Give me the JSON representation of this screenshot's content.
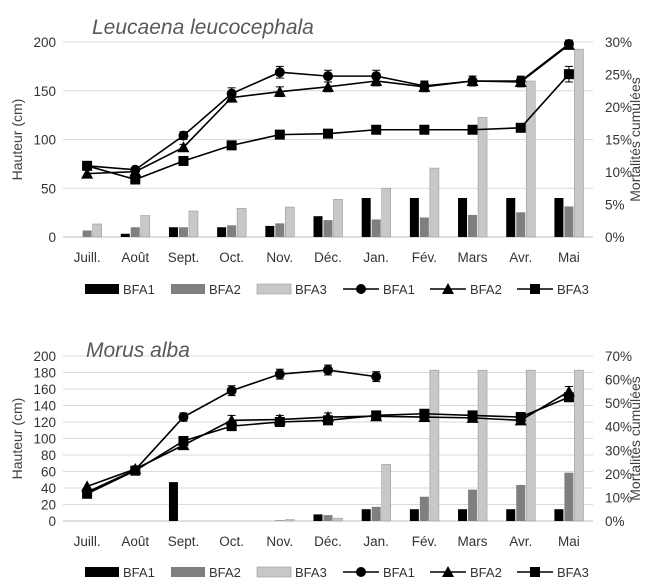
{
  "chart_data": [
    {
      "type": "bar+line",
      "title": "Leucaena leucocephala",
      "ylabel": "Hauteur (cm)",
      "y2label": "Mortalités cumulées",
      "ylim": [
        0,
        200
      ],
      "yticks": [
        "0",
        "50",
        "100",
        "150",
        "200"
      ],
      "y2lim": [
        0,
        30
      ],
      "y2ticks": [
        "0%",
        "5%",
        "10%",
        "15%",
        "20%",
        "25%",
        "30%"
      ],
      "categories": [
        "Juill.",
        "Août",
        "Sept.",
        "Oct.",
        "Nov.",
        "Déc.",
        "Jan.",
        "Fév.",
        "Mars",
        "Avr.",
        "Mai"
      ],
      "bar_series": [
        {
          "name": "BFA1",
          "color": "#000000",
          "values": [
            0,
            0.5,
            1.5,
            1.5,
            1.7,
            3.2,
            6.0,
            6.0,
            6.0,
            6.0,
            6.0
          ]
        },
        {
          "name": "BFA2",
          "color": "#7f7f7f",
          "values": [
            1.0,
            1.5,
            1.5,
            1.8,
            2.1,
            2.6,
            2.7,
            3.0,
            3.4,
            3.8,
            4.7
          ]
        },
        {
          "name": "BFA3",
          "color": "#c8c8c8",
          "values": [
            2.0,
            3.3,
            4.0,
            4.4,
            4.6,
            5.8,
            7.5,
            10.6,
            18.4,
            24.0,
            28.9
          ]
        }
      ],
      "line_series": [
        {
          "name": "BFA1",
          "marker": "circle",
          "values": [
            73,
            69,
            104,
            147,
            169,
            165,
            165,
            155,
            160,
            160,
            198
          ],
          "errors": [
            0,
            2,
            4,
            6,
            6,
            6,
            6,
            5,
            5,
            5,
            4
          ]
        },
        {
          "name": "BFA2",
          "marker": "triangle",
          "values": [
            65,
            67,
            92,
            143,
            149,
            154,
            160,
            154,
            160,
            159,
            197
          ],
          "errors": [
            0,
            2,
            3,
            4,
            5,
            5,
            5,
            5,
            5,
            5,
            3
          ]
        },
        {
          "name": "BFA3",
          "marker": "square",
          "values": [
            73,
            59,
            78,
            94,
            105,
            106,
            110,
            110,
            110,
            112,
            167
          ],
          "errors": [
            0,
            2,
            3,
            3,
            3,
            3,
            4,
            4,
            4,
            4,
            8
          ]
        }
      ]
    },
    {
      "type": "bar+line",
      "title": "Morus alba",
      "ylabel": "Hauteur (cm)",
      "y2label": "Mortalités cumulées",
      "ylim": [
        0,
        200
      ],
      "yticks": [
        "0",
        "20",
        "40",
        "60",
        "80",
        "100",
        "120",
        "140",
        "160",
        "180",
        "200"
      ],
      "y2lim": [
        0,
        70
      ],
      "y2ticks": [
        "0%",
        "10%",
        "20%",
        "30%",
        "40%",
        "50%",
        "60%",
        "70%"
      ],
      "categories": [
        "Juill.",
        "Août",
        "Sept.",
        "Oct.",
        "Nov.",
        "Déc.",
        "Jan.",
        "Fév.",
        "Mars",
        "Avr.",
        "Mai"
      ],
      "bar_series": [
        {
          "name": "BFA1",
          "color": "#000000",
          "values": [
            0,
            0,
            16.5,
            0,
            0,
            2.8,
            5.0,
            5.0,
            5.0,
            5.0,
            5.0
          ]
        },
        {
          "name": "BFA2",
          "color": "#7f7f7f",
          "values": [
            0,
            0,
            0,
            0,
            0.3,
            2.5,
            6.0,
            10.3,
            13.3,
            15.3,
            20.5
          ]
        },
        {
          "name": "BFA3",
          "color": "#c8c8c8",
          "values": [
            0,
            0,
            0,
            0,
            0.6,
            1.2,
            24.0,
            64.0,
            64.0,
            64.0,
            64.0
          ]
        }
      ],
      "line_series": [
        {
          "name": "BFA1",
          "marker": "circle",
          "values": [
            35,
            62,
            126,
            158,
            178,
            183,
            175,
            null,
            null,
            null,
            null
          ],
          "errors": [
            0,
            2,
            5,
            6,
            6,
            6,
            6,
            0,
            0,
            0,
            0
          ]
        },
        {
          "name": "BFA2",
          "marker": "triangle",
          "values": [
            42,
            63,
            92,
            122,
            123,
            126,
            127,
            126,
            125,
            122,
            157
          ],
          "errors": [
            0,
            2,
            3,
            6,
            5,
            5,
            5,
            5,
            5,
            5,
            6
          ]
        },
        {
          "name": "BFA3",
          "marker": "square",
          "values": [
            33,
            61,
            97,
            115,
            120,
            122,
            128,
            130,
            128,
            126,
            150
          ],
          "errors": [
            0,
            2,
            3,
            4,
            5,
            5,
            5,
            5,
            5,
            5,
            5
          ]
        }
      ]
    }
  ]
}
